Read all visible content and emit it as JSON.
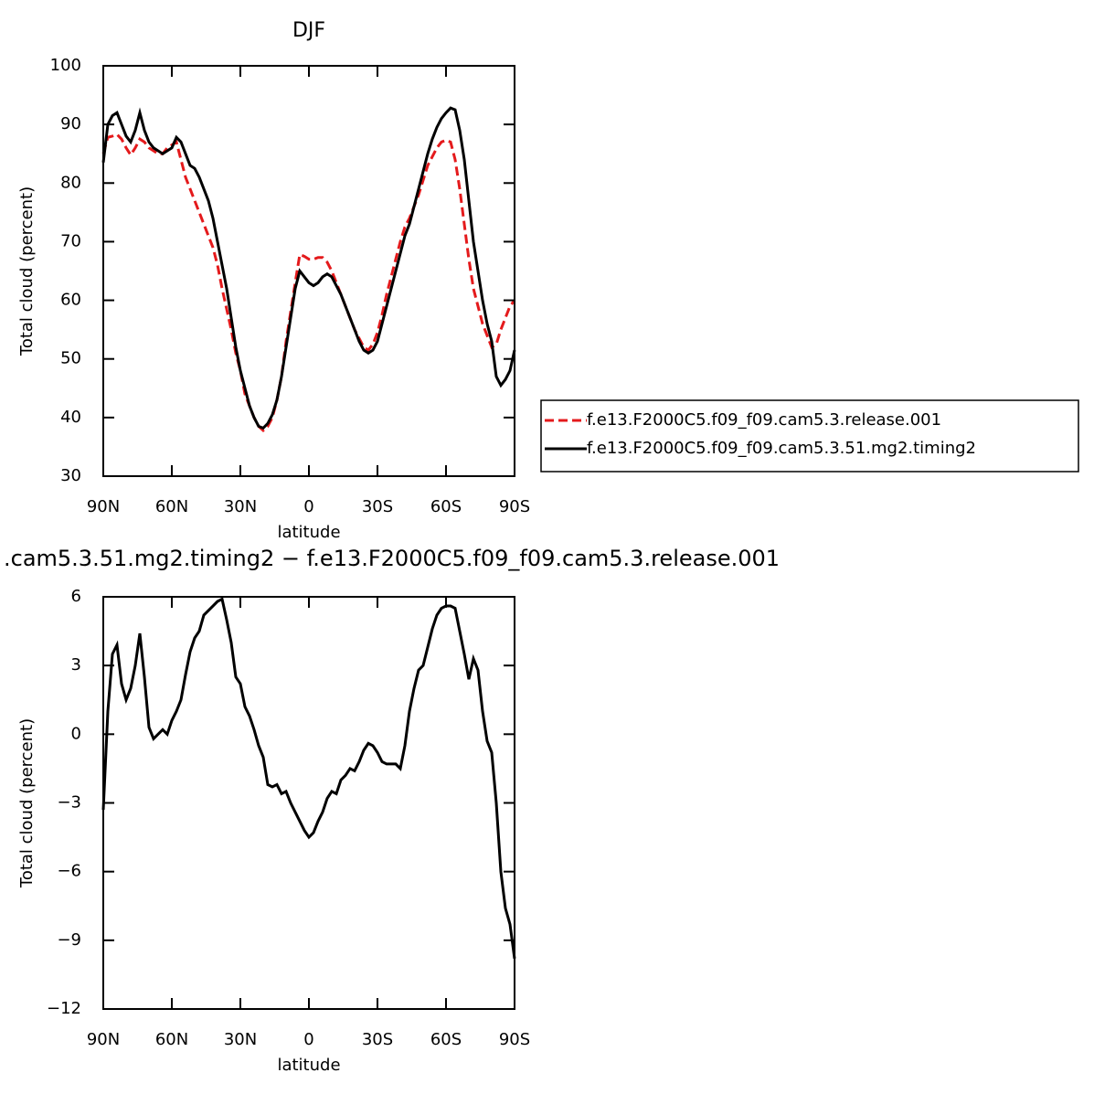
{
  "chart_data": [
    {
      "type": "line",
      "title": "DJF",
      "x_label": "latitude",
      "y_label": "Total cloud (percent)",
      "x": [
        90,
        88,
        86,
        84,
        82,
        80,
        78,
        76,
        74,
        72,
        70,
        68,
        66,
        64,
        62,
        60,
        58,
        56,
        54,
        52,
        50,
        48,
        46,
        44,
        42,
        40,
        38,
        36,
        34,
        32,
        30,
        28,
        26,
        24,
        22,
        20,
        18,
        16,
        14,
        12,
        10,
        8,
        6,
        4,
        2,
        0,
        -2,
        -4,
        -6,
        -8,
        -10,
        -12,
        -14,
        -16,
        -18,
        -20,
        -22,
        -24,
        -26,
        -28,
        -30,
        -32,
        -34,
        -36,
        -38,
        -40,
        -42,
        -44,
        -46,
        -48,
        -50,
        -52,
        -54,
        -56,
        -58,
        -60,
        -62,
        -64,
        -66,
        -68,
        -70,
        -72,
        -74,
        -76,
        -78,
        -80,
        -82,
        -84,
        -86,
        -88,
        -90
      ],
      "series": [
        {
          "name": "f.e13.F2000C5.f09_f09.cam5.3.release.001",
          "color": "#e41a1c",
          "style": "dashed",
          "values": [
            85,
            87.8,
            88,
            88.3,
            87.5,
            86,
            84.8,
            86,
            87.5,
            87,
            86,
            85.5,
            85,
            85,
            86,
            86.5,
            87,
            84,
            81,
            79,
            77,
            75,
            73,
            71,
            69,
            66,
            62,
            58.5,
            55,
            51,
            48,
            44,
            42,
            40,
            38.5,
            37.8,
            38.5,
            40,
            43,
            47,
            53,
            58,
            63,
            67.8,
            67.5,
            67,
            67,
            67.3,
            67.3,
            66.5,
            65,
            63,
            61,
            59,
            57,
            55,
            53.5,
            52,
            51.5,
            52.5,
            54.5,
            57.5,
            61,
            64,
            67,
            70,
            72.5,
            74,
            76,
            78,
            80.5,
            83,
            84.5,
            86,
            87,
            87.3,
            87,
            84,
            79,
            73,
            67,
            62,
            59,
            56,
            54,
            52,
            52.5,
            55,
            57,
            59,
            60
          ]
        },
        {
          "name": "f.e13.F2000C5.f09_f09.cam5.3.51.mg2.timing2",
          "color": "#000000",
          "style": "solid",
          "values": [
            83.5,
            90,
            91.5,
            92,
            90,
            88,
            87,
            89,
            92,
            89,
            87,
            86,
            85.5,
            85,
            85.5,
            86,
            87.8,
            87,
            85,
            83,
            82.5,
            81,
            79,
            77,
            74,
            70,
            66,
            62,
            57,
            52,
            48,
            45,
            42,
            40,
            38.5,
            38.2,
            39,
            40.5,
            43,
            47,
            52,
            57,
            62,
            65,
            64,
            63,
            62.5,
            63,
            64,
            64.5,
            64,
            62.5,
            61,
            59,
            57,
            55,
            53,
            51.5,
            51,
            51.5,
            53,
            56,
            59,
            62,
            65,
            68,
            71,
            73,
            76,
            79,
            82,
            85,
            87.5,
            89.5,
            91,
            92,
            92.8,
            92.5,
            89,
            84,
            77,
            70,
            65,
            60,
            56,
            53,
            47,
            45.5,
            46.5,
            48,
            51.5
          ]
        }
      ],
      "xlim": [
        90,
        -90
      ],
      "ylim": [
        30,
        100
      ],
      "xticks": [
        {
          "value": 90,
          "label": "90N"
        },
        {
          "value": 60,
          "label": "60N"
        },
        {
          "value": 30,
          "label": "30N"
        },
        0,
        {
          "value": -30,
          "label": "30S"
        },
        {
          "value": -60,
          "label": "60S"
        },
        {
          "value": -90,
          "label": "90S"
        }
      ],
      "yticks": [
        30,
        40,
        50,
        60,
        70,
        80,
        90,
        100
      ],
      "legend": "outside-right"
    },
    {
      "type": "line",
      "title": ".cam5.3.51.mg2.timing2 − f.e13.F2000C5.f09_f09.cam5.3.release.001",
      "x_label": "latitude",
      "y_label": "Total cloud (percent)",
      "x": [
        90,
        88,
        86,
        84,
        82,
        80,
        78,
        76,
        74,
        72,
        70,
        68,
        66,
        64,
        62,
        60,
        58,
        56,
        54,
        52,
        50,
        48,
        46,
        44,
        42,
        40,
        38,
        36,
        34,
        32,
        30,
        28,
        26,
        24,
        22,
        20,
        18,
        16,
        14,
        12,
        10,
        8,
        6,
        4,
        2,
        0,
        -2,
        -4,
        -6,
        -8,
        -10,
        -12,
        -14,
        -16,
        -18,
        -20,
        -22,
        -24,
        -26,
        -28,
        -30,
        -32,
        -34,
        -36,
        -38,
        -40,
        -42,
        -44,
        -46,
        -48,
        -50,
        -52,
        -54,
        -56,
        -58,
        -60,
        -62,
        -64,
        -66,
        -68,
        -70,
        -72,
        -74,
        -76,
        -78,
        -80,
        -82,
        -84,
        -86,
        -88,
        -90
      ],
      "series": [
        {
          "color": "#000000",
          "style": "solid",
          "values": [
            -3.3,
            1.0,
            3.5,
            3.9,
            2.2,
            1.5,
            2.0,
            3.0,
            4.4,
            2.5,
            0.3,
            -0.2,
            0.0,
            0.2,
            0.0,
            0.6,
            1.0,
            1.5,
            2.6,
            3.6,
            4.2,
            4.5,
            5.2,
            5.4,
            5.6,
            5.8,
            5.9,
            5.0,
            4.0,
            2.5,
            2.2,
            1.2,
            0.8,
            0.2,
            -0.5,
            -1.0,
            -2.2,
            -2.3,
            -2.2,
            -2.6,
            -2.5,
            -3.0,
            -3.4,
            -3.8,
            -4.2,
            -4.5,
            -4.3,
            -3.8,
            -3.4,
            -2.8,
            -2.5,
            -2.6,
            -2.0,
            -1.8,
            -1.5,
            -1.6,
            -1.2,
            -0.7,
            -0.4,
            -0.5,
            -0.8,
            -1.2,
            -1.3,
            -1.3,
            -1.3,
            -1.5,
            -0.5,
            1.0,
            2.0,
            2.8,
            3.0,
            3.8,
            4.6,
            5.2,
            5.5,
            5.6,
            5.6,
            5.5,
            4.5,
            3.5,
            2.4,
            3.3,
            2.8,
            1.0,
            -0.3,
            -0.8,
            -3.0,
            -6.0,
            -7.6,
            -8.3,
            -9.8
          ]
        }
      ],
      "xlim": [
        90,
        -90
      ],
      "ylim": [
        -12,
        6
      ],
      "xticks": [
        {
          "value": 90,
          "label": "90N"
        },
        {
          "value": 60,
          "label": "60N"
        },
        {
          "value": 30,
          "label": "30N"
        },
        0,
        {
          "value": -30,
          "label": "30S"
        },
        {
          "value": -60,
          "label": "60S"
        },
        {
          "value": -90,
          "label": "90S"
        }
      ],
      "yticks": [
        {
          "value": -12,
          "label": "−12"
        },
        {
          "value": -9,
          "label": "−9"
        },
        {
          "value": -6,
          "label": "−6"
        },
        {
          "value": -3,
          "label": "−3"
        },
        0,
        3,
        6
      ]
    }
  ]
}
